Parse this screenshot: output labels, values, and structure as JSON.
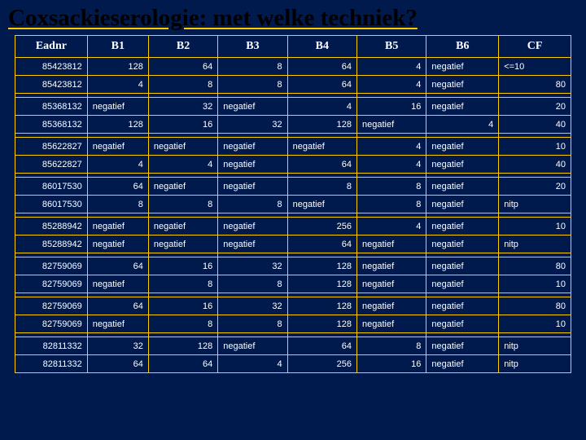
{
  "title": "Coxsackieserologie: met welke techniek?",
  "columns": [
    "Eadnr",
    "B1",
    "B2",
    "B3",
    "B4",
    "B5",
    "B6",
    "CF"
  ],
  "groups": [
    [
      [
        "85423812",
        "128",
        "64",
        "8",
        "64",
        "4",
        "negatief",
        "<=10"
      ],
      [
        "85423812",
        "4",
        "8",
        "8",
        "64",
        "4",
        "negatief",
        "80"
      ]
    ],
    [
      [
        "85368132",
        "negatief",
        "32",
        "negatief",
        "4",
        "16",
        "negatief",
        "20"
      ],
      [
        "85368132",
        "128",
        "16",
        "32",
        "128",
        "negatief",
        "4",
        "40"
      ]
    ],
    [
      [
        "85622827",
        "negatief",
        "negatief",
        "negatief",
        "negatief",
        "4",
        "negatief",
        "10"
      ],
      [
        "85622827",
        "4",
        "4",
        "negatief",
        "64",
        "4",
        "negatief",
        "40"
      ]
    ],
    [
      [
        "86017530",
        "64",
        "negatief",
        "negatief",
        "8",
        "8",
        "negatief",
        "20"
      ],
      [
        "86017530",
        "8",
        "8",
        "8",
        "negatief",
        "8",
        "negatief",
        "nitp"
      ]
    ],
    [
      [
        "85288942",
        "negatief",
        "negatief",
        "negatief",
        "256",
        "4",
        "negatief",
        "10"
      ],
      [
        "85288942",
        "negatief",
        "negatief",
        "negatief",
        "64",
        "negatief",
        "negatief",
        "nitp"
      ]
    ],
    [
      [
        "82759069",
        "64",
        "16",
        "32",
        "128",
        "negatief",
        "negatief",
        "80"
      ],
      [
        "82759069",
        "negatief",
        "8",
        "8",
        "128",
        "negatief",
        "negatief",
        "10"
      ]
    ],
    [
      [
        "82759069",
        "64",
        "16",
        "32",
        "128",
        "negatief",
        "negatief",
        "80"
      ],
      [
        "82759069",
        "negatief",
        "8",
        "8",
        "128",
        "negatief",
        "negatief",
        "10"
      ]
    ],
    [
      [
        "82811332",
        "32",
        "128",
        "negatief",
        "64",
        "8",
        "negatief",
        "nitp"
      ],
      [
        "82811332",
        "64",
        "64",
        "4",
        "256",
        "16",
        "negatief",
        "nitp"
      ]
    ]
  ],
  "colors": {
    "bg": "#001a4d",
    "border": "#ffcc00",
    "text": "#ffffff",
    "title_text": "#000000"
  }
}
